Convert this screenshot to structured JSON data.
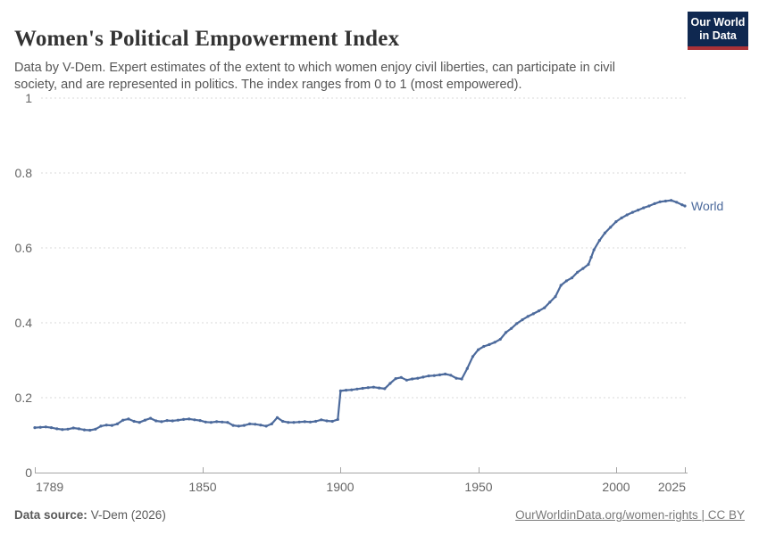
{
  "header": {
    "title": "Women's Political Empowerment Index",
    "subtitle": "Data by V-Dem. Expert estimates of the extent to which women enjoy civil liberties, can participate in civil society, and are represented in politics. The index ranges from 0 to 1 (most empowered).",
    "logo": {
      "line1": "Our World",
      "line2": "in Data",
      "bg_color": "#0f2850",
      "stripe_color": "#aa3237",
      "text_color": "#ffffff"
    }
  },
  "footer": {
    "source_label": "Data source:",
    "source_value": "V-Dem (2026)",
    "credit": "OurWorldinData.org/women-rights | CC BY"
  },
  "chart_data": {
    "type": "line",
    "title": "Women's Political Empowerment Index",
    "xlabel": "",
    "ylabel": "",
    "xlim": [
      1789,
      2025
    ],
    "ylim": [
      0,
      1
    ],
    "x_ticks": [
      1789,
      1850,
      1900,
      1950,
      2000,
      2025
    ],
    "x_tick_labels": [
      "1789",
      "1850",
      "1900",
      "1950",
      "2000",
      "2025"
    ],
    "y_ticks": [
      1,
      0.8,
      0.6,
      0.4,
      0.2,
      0
    ],
    "y_tick_labels": [
      "1",
      "0.8",
      "0.6",
      "0.4",
      "0.2",
      "0"
    ],
    "grid": "horizontal-dashed",
    "legend": "end-of-line-label",
    "series": [
      {
        "name": "World",
        "color": "#4c6a9c",
        "points": [
          [
            1789,
            0.12
          ],
          [
            1791,
            0.121
          ],
          [
            1793,
            0.122
          ],
          [
            1795,
            0.12
          ],
          [
            1797,
            0.117
          ],
          [
            1799,
            0.115
          ],
          [
            1801,
            0.116
          ],
          [
            1803,
            0.119
          ],
          [
            1805,
            0.117
          ],
          [
            1807,
            0.114
          ],
          [
            1809,
            0.113
          ],
          [
            1811,
            0.116
          ],
          [
            1813,
            0.124
          ],
          [
            1815,
            0.127
          ],
          [
            1817,
            0.126
          ],
          [
            1819,
            0.13
          ],
          [
            1821,
            0.14
          ],
          [
            1823,
            0.143
          ],
          [
            1825,
            0.137
          ],
          [
            1827,
            0.134
          ],
          [
            1829,
            0.14
          ],
          [
            1831,
            0.145
          ],
          [
            1833,
            0.138
          ],
          [
            1835,
            0.136
          ],
          [
            1837,
            0.139
          ],
          [
            1839,
            0.138
          ],
          [
            1841,
            0.14
          ],
          [
            1843,
            0.142
          ],
          [
            1845,
            0.143
          ],
          [
            1847,
            0.141
          ],
          [
            1849,
            0.139
          ],
          [
            1851,
            0.135
          ],
          [
            1853,
            0.134
          ],
          [
            1855,
            0.136
          ],
          [
            1857,
            0.135
          ],
          [
            1859,
            0.134
          ],
          [
            1861,
            0.126
          ],
          [
            1863,
            0.124
          ],
          [
            1865,
            0.126
          ],
          [
            1867,
            0.13
          ],
          [
            1869,
            0.129
          ],
          [
            1871,
            0.127
          ],
          [
            1873,
            0.124
          ],
          [
            1875,
            0.13
          ],
          [
            1877,
            0.147
          ],
          [
            1879,
            0.137
          ],
          [
            1881,
            0.134
          ],
          [
            1883,
            0.134
          ],
          [
            1885,
            0.135
          ],
          [
            1887,
            0.136
          ],
          [
            1889,
            0.135
          ],
          [
            1891,
            0.137
          ],
          [
            1893,
            0.141
          ],
          [
            1895,
            0.138
          ],
          [
            1897,
            0.137
          ],
          [
            1899,
            0.142
          ],
          [
            1900,
            0.218
          ],
          [
            1902,
            0.22
          ],
          [
            1904,
            0.221
          ],
          [
            1906,
            0.223
          ],
          [
            1908,
            0.225
          ],
          [
            1910,
            0.227
          ],
          [
            1912,
            0.228
          ],
          [
            1914,
            0.226
          ],
          [
            1916,
            0.224
          ],
          [
            1918,
            0.238
          ],
          [
            1920,
            0.251
          ],
          [
            1922,
            0.254
          ],
          [
            1924,
            0.247
          ],
          [
            1926,
            0.25
          ],
          [
            1928,
            0.252
          ],
          [
            1930,
            0.255
          ],
          [
            1932,
            0.258
          ],
          [
            1934,
            0.259
          ],
          [
            1936,
            0.261
          ],
          [
            1938,
            0.263
          ],
          [
            1940,
            0.26
          ],
          [
            1942,
            0.252
          ],
          [
            1944,
            0.25
          ],
          [
            1946,
            0.278
          ],
          [
            1948,
            0.31
          ],
          [
            1950,
            0.328
          ],
          [
            1952,
            0.337
          ],
          [
            1954,
            0.342
          ],
          [
            1956,
            0.348
          ],
          [
            1958,
            0.356
          ],
          [
            1960,
            0.374
          ],
          [
            1962,
            0.385
          ],
          [
            1964,
            0.398
          ],
          [
            1966,
            0.408
          ],
          [
            1968,
            0.417
          ],
          [
            1970,
            0.424
          ],
          [
            1972,
            0.432
          ],
          [
            1974,
            0.44
          ],
          [
            1976,
            0.455
          ],
          [
            1978,
            0.47
          ],
          [
            1980,
            0.5
          ],
          [
            1982,
            0.512
          ],
          [
            1984,
            0.52
          ],
          [
            1986,
            0.535
          ],
          [
            1988,
            0.545
          ],
          [
            1990,
            0.556
          ],
          [
            1991,
            0.575
          ],
          [
            1992,
            0.595
          ],
          [
            1994,
            0.62
          ],
          [
            1996,
            0.64
          ],
          [
            1998,
            0.655
          ],
          [
            2000,
            0.67
          ],
          [
            2002,
            0.68
          ],
          [
            2004,
            0.688
          ],
          [
            2006,
            0.695
          ],
          [
            2008,
            0.701
          ],
          [
            2010,
            0.707
          ],
          [
            2012,
            0.712
          ],
          [
            2014,
            0.718
          ],
          [
            2016,
            0.723
          ],
          [
            2018,
            0.725
          ],
          [
            2020,
            0.727
          ],
          [
            2022,
            0.722
          ],
          [
            2024,
            0.715
          ],
          [
            2025,
            0.712
          ]
        ]
      }
    ]
  }
}
